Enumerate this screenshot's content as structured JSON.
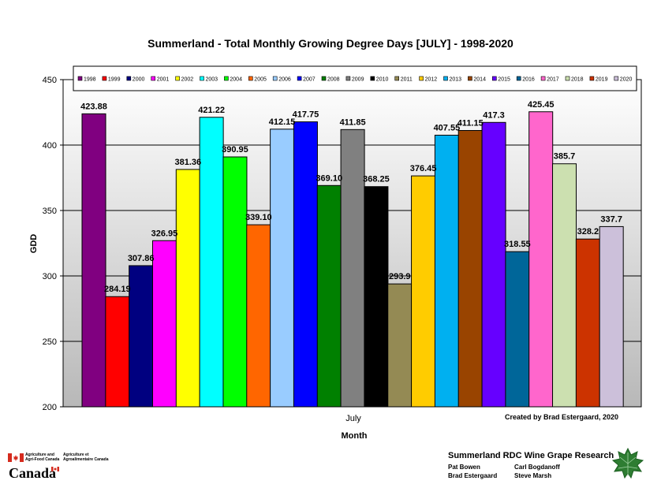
{
  "chart_data": {
    "type": "bar",
    "title": "Summerland - Total Monthly Growing Degree Days [JULY] - 1998-2020",
    "xlabel": "Month",
    "ylabel": "GDD",
    "category": "July",
    "ylim": [
      200,
      450
    ],
    "yticks": [
      200,
      250,
      300,
      350,
      400,
      450
    ],
    "grid": true,
    "legend_position": "top",
    "series": [
      {
        "name": "1998",
        "value": 423.88,
        "label": "423.88",
        "color": "#800080"
      },
      {
        "name": "1999",
        "value": 284.19,
        "label": "284.19",
        "color": "#ff0000"
      },
      {
        "name": "2000",
        "value": 307.86,
        "label": "307.86",
        "color": "#000080"
      },
      {
        "name": "2001",
        "value": 326.95,
        "label": "326.95",
        "color": "#ff00ff"
      },
      {
        "name": "2002",
        "value": 381.36,
        "label": "381.36",
        "color": "#ffff00"
      },
      {
        "name": "2003",
        "value": 421.22,
        "label": "421.22",
        "color": "#00ffff"
      },
      {
        "name": "2004",
        "value": 390.95,
        "label": "390.95",
        "color": "#00ff00"
      },
      {
        "name": "2005",
        "value": 339.1,
        "label": "339.10",
        "color": "#ff6600"
      },
      {
        "name": "2006",
        "value": 412.15,
        "label": "412.15",
        "color": "#99ccff"
      },
      {
        "name": "2007",
        "value": 417.75,
        "label": "417.75",
        "color": "#0000ff"
      },
      {
        "name": "2008",
        "value": 369.1,
        "label": "369.10",
        "color": "#008000"
      },
      {
        "name": "2009",
        "value": 411.85,
        "label": "411.85",
        "color": "#808080"
      },
      {
        "name": "2010",
        "value": 368.25,
        "label": "368.25",
        "color": "#000000"
      },
      {
        "name": "2011",
        "value": 293.9,
        "label": "293.9",
        "color": "#948a54"
      },
      {
        "name": "2012",
        "value": 376.45,
        "label": "376.45",
        "color": "#ffcc00"
      },
      {
        "name": "2013",
        "value": 407.55,
        "label": "407.55",
        "color": "#00b0f0"
      },
      {
        "name": "2014",
        "value": 411.15,
        "label": "411.15",
        "color": "#994400"
      },
      {
        "name": "2015",
        "value": 417.3,
        "label": "417.3",
        "color": "#6600ff"
      },
      {
        "name": "2016",
        "value": 318.55,
        "label": "318.55",
        "color": "#006699"
      },
      {
        "name": "2017",
        "value": 425.45,
        "label": "425.45",
        "color": "#ff66cc"
      },
      {
        "name": "2018",
        "value": 385.7,
        "label": "385.7",
        "color": "#cce0b0"
      },
      {
        "name": "2019",
        "value": 328.2,
        "label": "328.2",
        "color": "#cc3300"
      },
      {
        "name": "2020",
        "value": 337.7,
        "label": "337.7",
        "color": "#ccc0da"
      }
    ]
  },
  "credit": "Created by Brad Estergaard, 2020",
  "footer": {
    "agency_en": "Agriculture and Agri-Food Canada",
    "agency_fr": "Agriculture et Agroalimentaire Canada",
    "wordmark": "Canada",
    "research_title": "Summerland RDC Wine Grape Research",
    "people": [
      "Pat Bowen",
      "Carl Bogdanoff",
      "Brad Estergaard",
      "Steve Marsh"
    ]
  }
}
